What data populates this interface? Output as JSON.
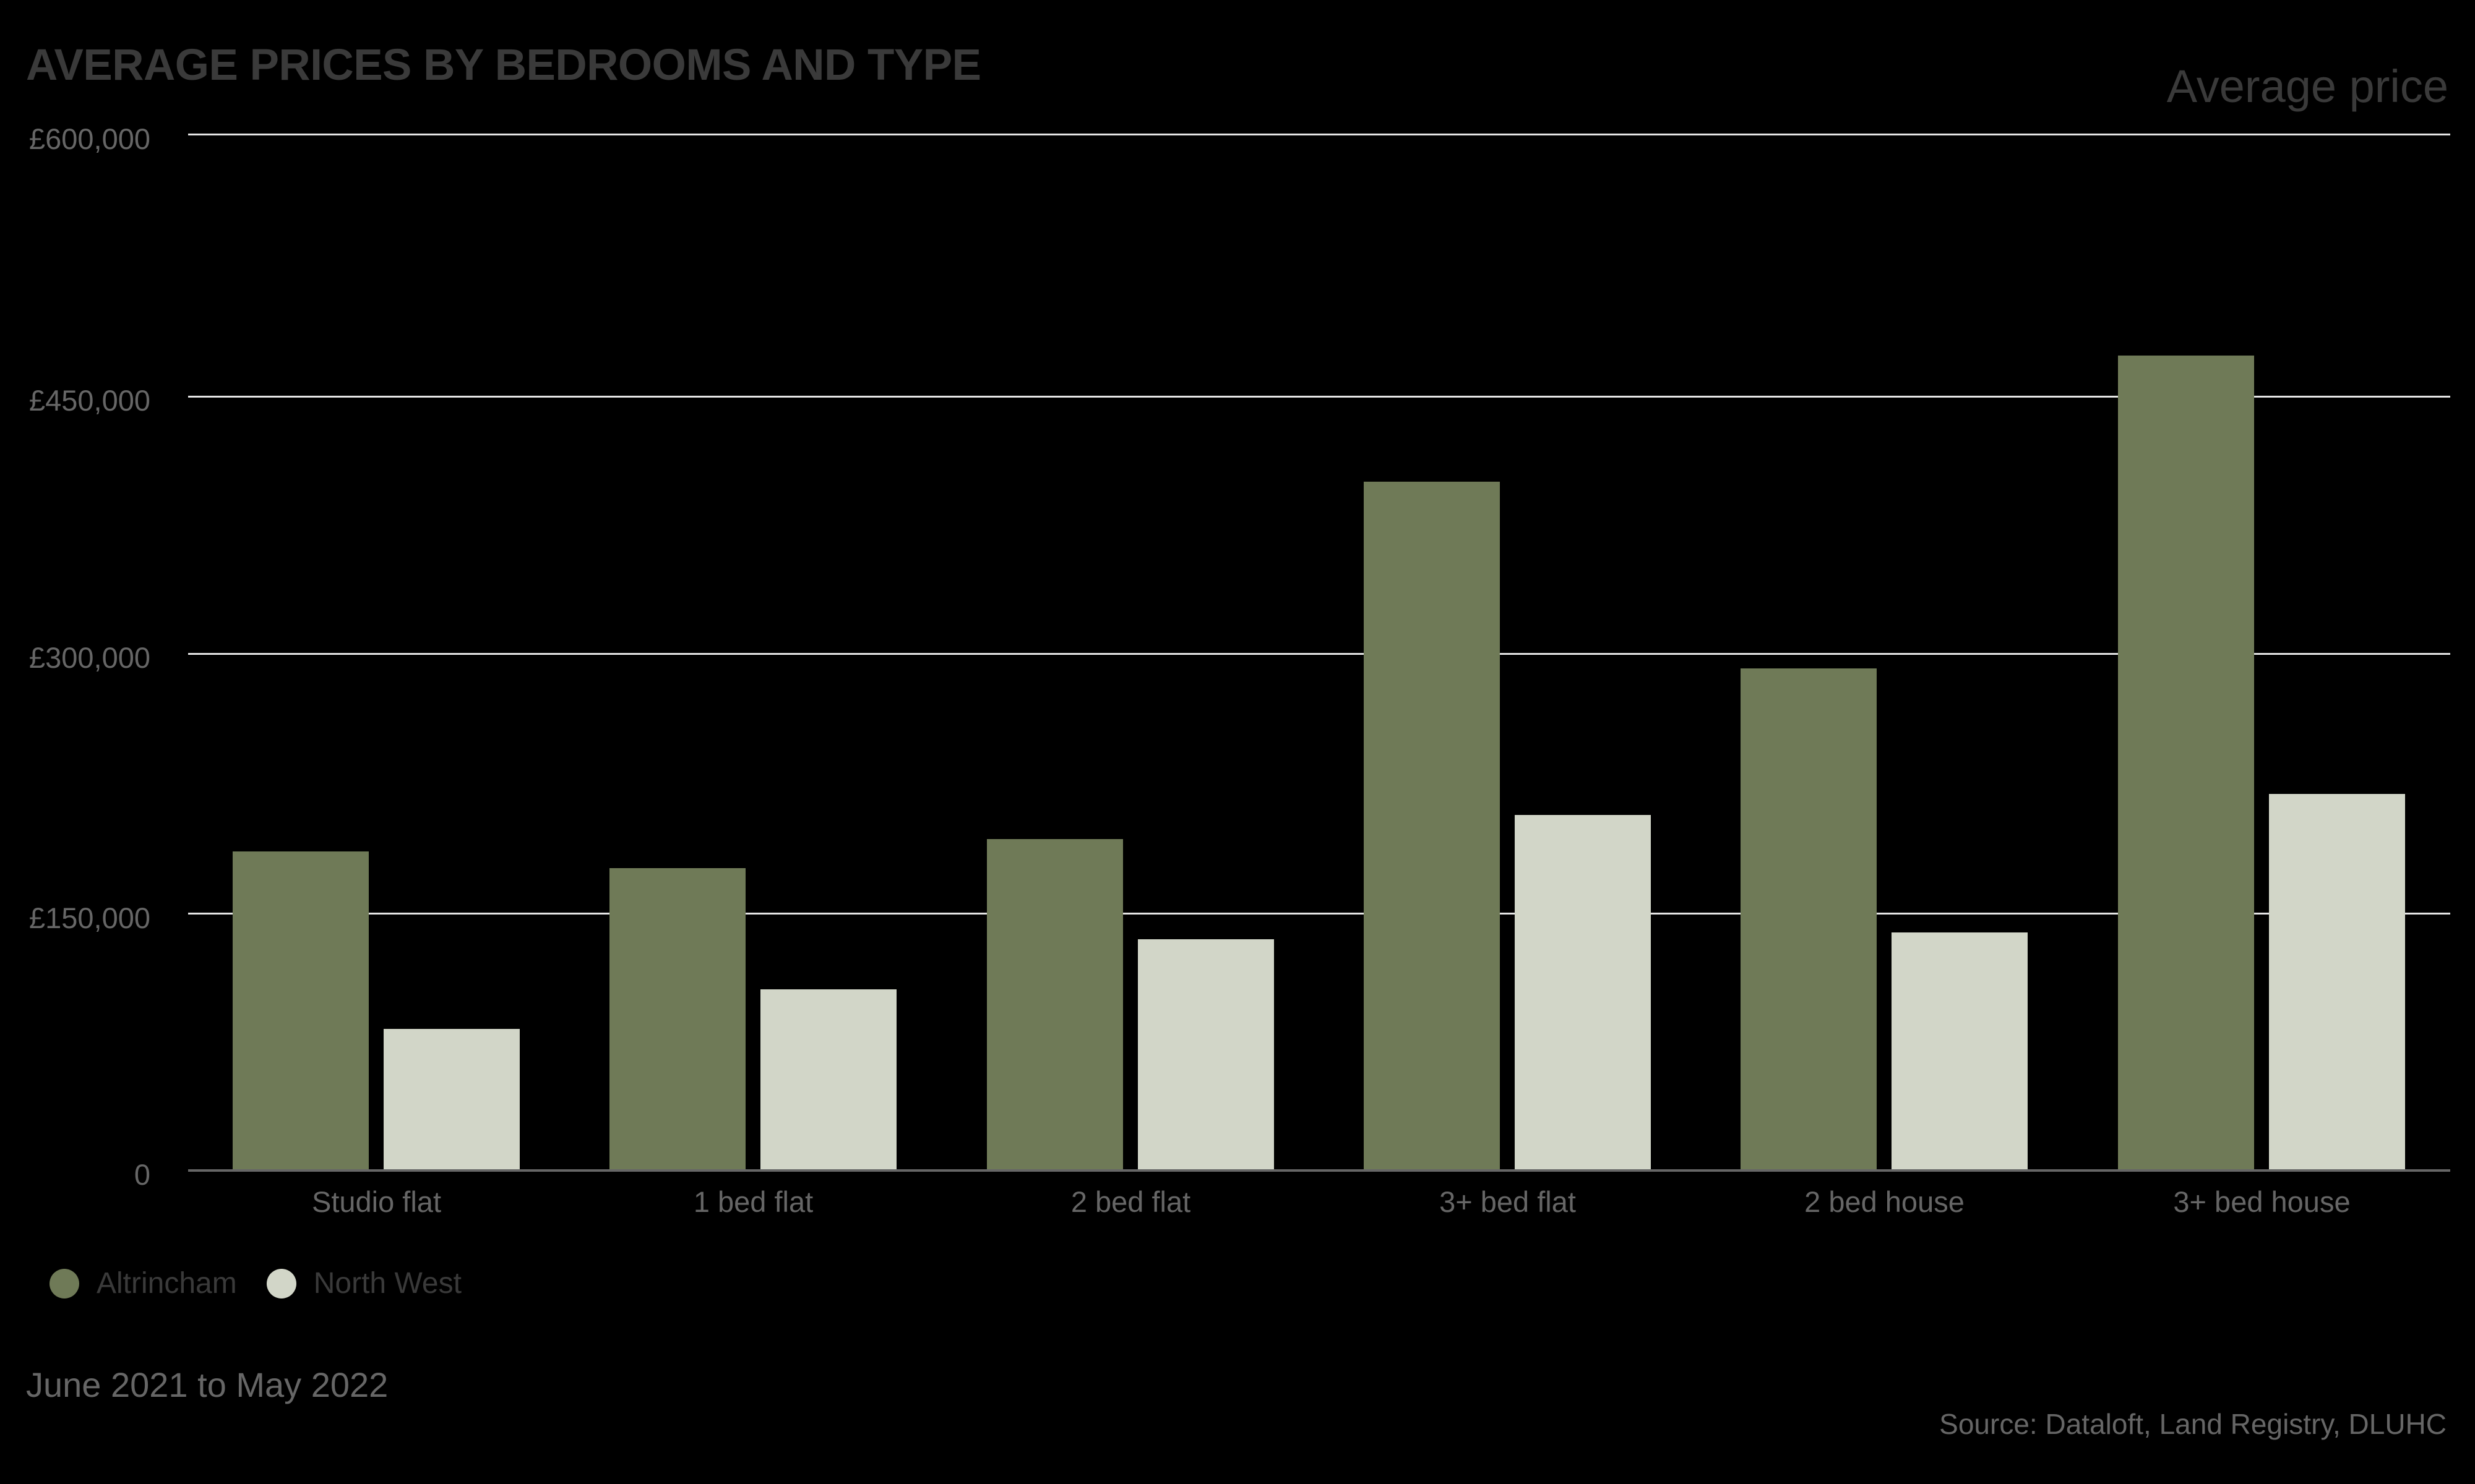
{
  "header": {
    "title": "AVERAGE PRICES BY BEDROOMS AND TYPE",
    "measure_label": "Average price"
  },
  "y_axis": {
    "ticks": [
      "£600,000",
      "£450,000",
      "£300,000",
      "£150,000",
      "0"
    ]
  },
  "x_axis": {
    "labels": [
      "Studio flat",
      "1 bed flat",
      "2 bed flat",
      "3+ bed flat",
      "2 bed house",
      "3+ bed house"
    ]
  },
  "legend": {
    "items": [
      {
        "label": "Altrincham",
        "color": "#6F7A57"
      },
      {
        "label": "North West",
        "color": "#D2D6C8"
      }
    ]
  },
  "footer": {
    "period": "June 2021 to May 2022",
    "source": "Source: Dataloft, Land Registry, DLUHC"
  },
  "colors": {
    "background": "#000000",
    "altrincham": "#6F7A57",
    "north_west": "#D2D6C8",
    "gridline": "#E6E6E6",
    "axis": "#666666",
    "title": "#3A3A3A"
  },
  "chart_data": {
    "type": "bar",
    "title": "AVERAGE PRICES BY BEDROOMS AND TYPE",
    "subtitle": "Average price",
    "xlabel": "",
    "ylabel": "Average price",
    "categories": [
      "Studio flat",
      "1 bed flat",
      "2 bed flat",
      "3+ bed flat",
      "2 bed house",
      "3+ bed house"
    ],
    "series": [
      {
        "name": "Altrincham",
        "color": "#6F7A57",
        "values": [
          185000,
          175000,
          192000,
          399000,
          291000,
          472000
        ]
      },
      {
        "name": "North West",
        "color": "#D2D6C8",
        "values": [
          82000,
          105000,
          134000,
          206000,
          138000,
          218000
        ]
      }
    ],
    "ylim": [
      0,
      600000
    ],
    "yticks": [
      0,
      150000,
      300000,
      450000,
      600000
    ],
    "ytick_labels": [
      "0",
      "£150,000",
      "£300,000",
      "£450,000",
      "£600,000"
    ],
    "grid": true,
    "legend_position": "bottom-left",
    "annotations": [
      "June 2021 to May 2022",
      "Source: Dataloft, Land Registry, DLUHC"
    ]
  }
}
